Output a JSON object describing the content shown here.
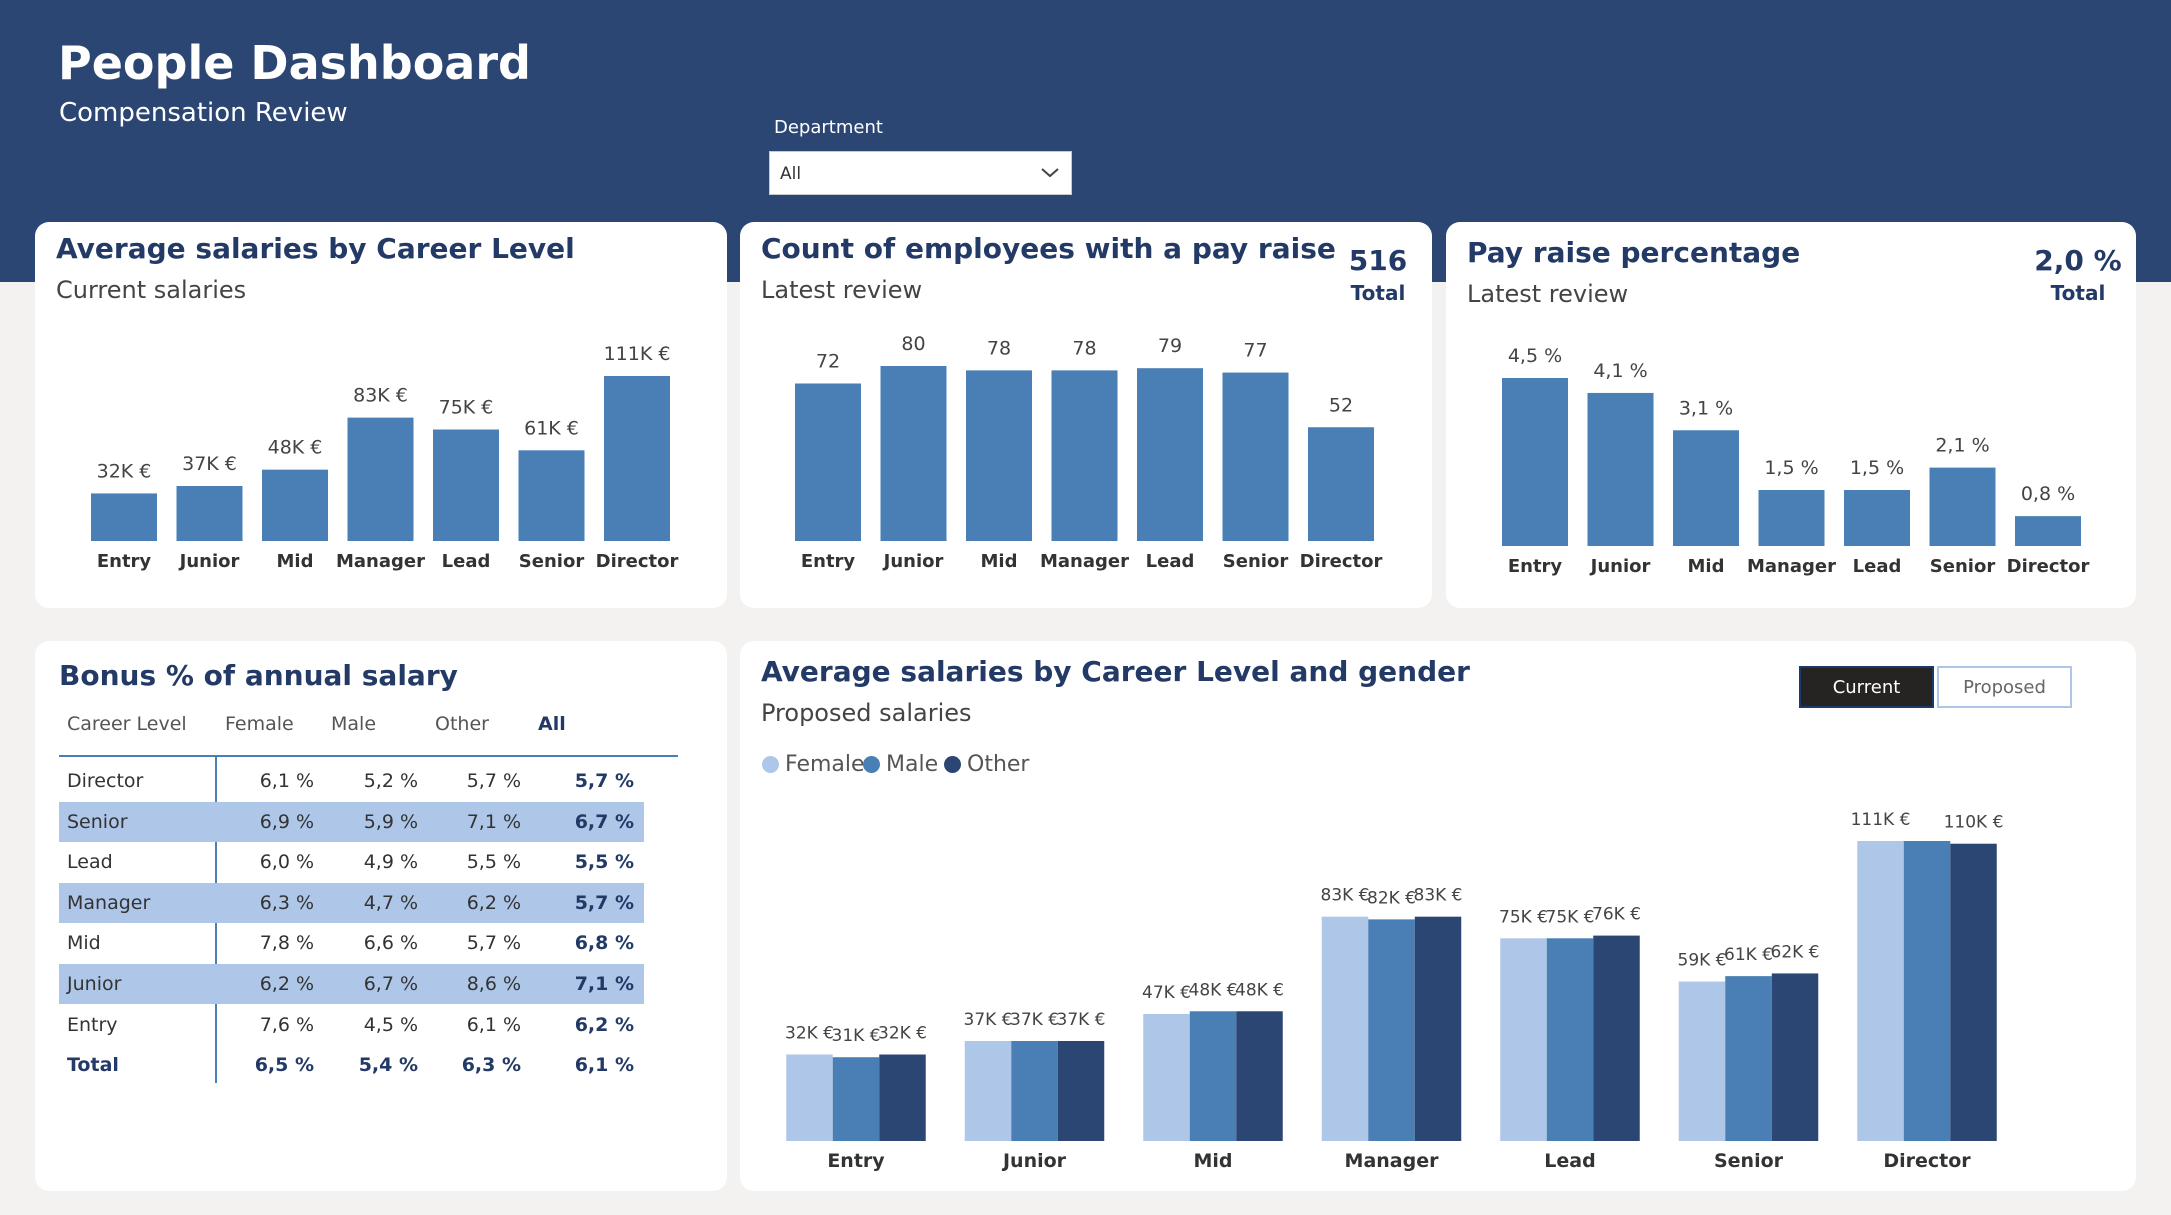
{
  "header": {
    "title": "People Dashboard",
    "subtitle": "Compensation Review"
  },
  "filter": {
    "label": "Department",
    "value": "All"
  },
  "colors": {
    "header": "#2c4674",
    "bar": "#4a7fb5",
    "female": "#aec6e8",
    "male": "#4a7fb5",
    "other": "#2c4674",
    "row_highlight": "#aec6e8"
  },
  "card_avg_salary": {
    "title": "Average salaries by Career Level",
    "subtitle": "Current salaries"
  },
  "card_pay_raise_count": {
    "title": "Count of employees with a pay raise",
    "subtitle": "Latest review",
    "kpi_value": "516",
    "kpi_label": "Total"
  },
  "card_pay_raise_pct": {
    "title": "Pay raise percentage",
    "subtitle": "Latest review",
    "kpi_value": "2,0 %",
    "kpi_label": "Total"
  },
  "card_bonus": {
    "title": "Bonus % of annual salary",
    "columns": [
      "Career Level",
      "Female",
      "Male",
      "Other",
      "All"
    ],
    "rows": [
      {
        "level": "Director",
        "female": "6,1 %",
        "male": "5,2 %",
        "other": "5,7 %",
        "all": "5,7 %",
        "highlight": false
      },
      {
        "level": "Senior",
        "female": "6,9 %",
        "male": "5,9 %",
        "other": "7,1 %",
        "all": "6,7 %",
        "highlight": true
      },
      {
        "level": "Lead",
        "female": "6,0 %",
        "male": "4,9 %",
        "other": "5,5 %",
        "all": "5,5 %",
        "highlight": false
      },
      {
        "level": "Manager",
        "female": "6,3 %",
        "male": "4,7 %",
        "other": "6,2 %",
        "all": "5,7 %",
        "highlight": true
      },
      {
        "level": "Mid",
        "female": "7,8 %",
        "male": "6,6 %",
        "other": "5,7 %",
        "all": "6,8 %",
        "highlight": false
      },
      {
        "level": "Junior",
        "female": "6,2 %",
        "male": "6,7 %",
        "other": "8,6 %",
        "all": "7,1 %",
        "highlight": true
      },
      {
        "level": "Entry",
        "female": "7,6 %",
        "male": "4,5 %",
        "other": "6,1 %",
        "all": "6,2 %",
        "highlight": false
      }
    ],
    "total": {
      "level": "Total",
      "female": "6,5 %",
      "male": "5,4 %",
      "other": "6,3 %",
      "all": "6,1 %"
    }
  },
  "card_gender": {
    "title": "Average salaries by Career Level and gender",
    "subtitle": "Proposed salaries",
    "toggle_current": "Current",
    "toggle_proposed": "Proposed",
    "legend": [
      "Female",
      "Male",
      "Other"
    ]
  },
  "chart_data": [
    {
      "type": "bar",
      "title": "Average salaries by Career Level",
      "subtitle": "Current salaries",
      "categories": [
        "Entry",
        "Junior",
        "Mid",
        "Manager",
        "Lead",
        "Senior",
        "Director"
      ],
      "values": [
        32,
        37,
        48,
        83,
        75,
        61,
        111
      ],
      "labels": [
        "32K €",
        "37K €",
        "48K €",
        "83K €",
        "75K €",
        "61K €",
        "111K €"
      ],
      "unit": "K €",
      "ylim": [
        0,
        111
      ]
    },
    {
      "type": "bar",
      "title": "Count of employees with a pay raise",
      "subtitle": "Latest review",
      "categories": [
        "Entry",
        "Junior",
        "Mid",
        "Manager",
        "Lead",
        "Senior",
        "Director"
      ],
      "values": [
        72,
        80,
        78,
        78,
        79,
        77,
        52
      ],
      "labels": [
        "72",
        "80",
        "78",
        "78",
        "79",
        "77",
        "52"
      ],
      "ylim": [
        0,
        80
      ]
    },
    {
      "type": "bar",
      "title": "Pay raise percentage",
      "subtitle": "Latest review",
      "categories": [
        "Entry",
        "Junior",
        "Mid",
        "Manager",
        "Lead",
        "Senior",
        "Director"
      ],
      "values": [
        4.5,
        4.1,
        3.1,
        1.5,
        1.5,
        2.1,
        0.8
      ],
      "labels": [
        "4,5 %",
        "4,1 %",
        "3,1 %",
        "1,5 %",
        "1,5 %",
        "2,1 %",
        "0,8 %"
      ],
      "unit": "%",
      "ylim": [
        0,
        4.5
      ]
    },
    {
      "type": "bar",
      "title": "Average salaries by Career Level and gender",
      "subtitle": "Proposed salaries",
      "categories": [
        "Entry",
        "Junior",
        "Mid",
        "Manager",
        "Lead",
        "Senior",
        "Director"
      ],
      "series": [
        {
          "name": "Female",
          "values": [
            32,
            37,
            47,
            83,
            75,
            59,
            111
          ],
          "labels": [
            "32K €",
            "37K €",
            "47K €",
            "83K €",
            "75K €",
            "59K €",
            "111K €"
          ]
        },
        {
          "name": "Male",
          "values": [
            31,
            37,
            48,
            82,
            75,
            61,
            111
          ],
          "labels": [
            "31K €",
            "37K €",
            "48K €",
            "82K €",
            "75K €",
            "61K €",
            ""
          ]
        },
        {
          "name": "Other",
          "values": [
            32,
            37,
            48,
            83,
            76,
            62,
            110
          ],
          "labels": [
            "32K €",
            "37K €",
            "48K €",
            "83K €",
            "76K €",
            "62K €",
            "110K €"
          ]
        }
      ],
      "unit": "K €",
      "ylim": [
        0,
        111
      ],
      "legend_position": "top-left"
    }
  ]
}
